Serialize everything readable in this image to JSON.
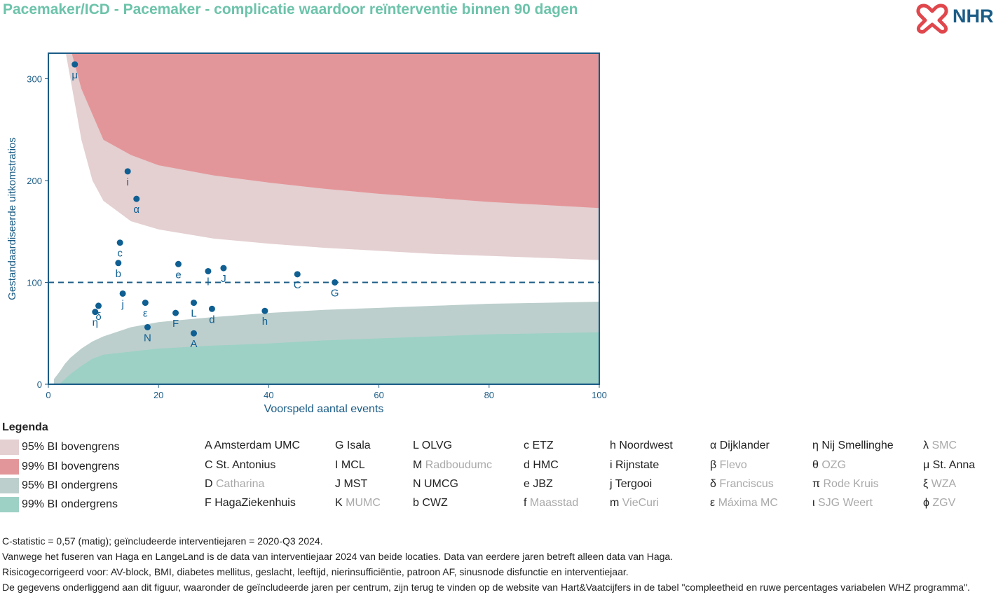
{
  "title": "Pacemaker/ICD - Pacemaker - complicatie waardoor reïnterventie binnen 90 dagen",
  "logo": {
    "text": "NHR",
    "icon": "nhr-heart-logo-icon"
  },
  "colors": {
    "title": "#6cc3aa",
    "upper95": "#e4cfd1",
    "upper99": "#e39699",
    "lower95": "#bccfcd",
    "lower99": "#9dd1c5",
    "axis": "#1b5c86",
    "point": "#0f5f92"
  },
  "chart_data": {
    "type": "scatter",
    "xlabel": "Voorspeld aantal events",
    "ylabel": "Gestandaardiseerde uitkomstratios",
    "xlim": [
      0,
      100
    ],
    "ylim": [
      0,
      325
    ],
    "xticks": [
      0,
      20,
      40,
      60,
      80,
      100
    ],
    "yticks": [
      0,
      100,
      200,
      300
    ],
    "reference_line": 100,
    "points": [
      {
        "label": "μ",
        "x": 4.8,
        "y": 314
      },
      {
        "label": "i",
        "x": 14.4,
        "y": 209
      },
      {
        "label": "α",
        "x": 16.0,
        "y": 182
      },
      {
        "label": "c",
        "x": 13.0,
        "y": 139
      },
      {
        "label": "b",
        "x": 12.7,
        "y": 119
      },
      {
        "label": "e",
        "x": 23.6,
        "y": 118
      },
      {
        "label": "l",
        "x": 29.0,
        "y": 111
      },
      {
        "label": "J",
        "x": 31.8,
        "y": 114
      },
      {
        "label": "C",
        "x": 45.2,
        "y": 108
      },
      {
        "label": "G",
        "x": 52.0,
        "y": 100
      },
      {
        "label": "j",
        "x": 13.5,
        "y": 89
      },
      {
        "label": "ε",
        "x": 17.6,
        "y": 80
      },
      {
        "label": "δ",
        "x": 9.1,
        "y": 77
      },
      {
        "label": "η",
        "x": 8.5,
        "y": 71
      },
      {
        "label": "F",
        "x": 23.1,
        "y": 70
      },
      {
        "label": "L",
        "x": 26.4,
        "y": 80
      },
      {
        "label": "d",
        "x": 29.7,
        "y": 74
      },
      {
        "label": "h",
        "x": 39.3,
        "y": 72
      },
      {
        "label": "N",
        "x": 18.0,
        "y": 56
      },
      {
        "label": "A",
        "x": 26.4,
        "y": 50
      }
    ],
    "bands": {
      "x": [
        1,
        2,
        3,
        4,
        6,
        8,
        10,
        15,
        20,
        30,
        40,
        50,
        60,
        70,
        80,
        90,
        100
      ],
      "upper99": [
        330,
        330,
        330,
        330,
        290,
        265,
        240,
        225,
        215,
        205,
        198,
        192,
        187,
        183,
        179,
        176,
        173
      ],
      "upper95": [
        330,
        330,
        330,
        300,
        240,
        200,
        180,
        160,
        152,
        143,
        138,
        134,
        131,
        128,
        126,
        124,
        122
      ],
      "lower95": [
        5,
        12,
        20,
        26,
        35,
        42,
        47,
        56,
        61,
        66,
        70,
        73,
        75,
        77,
        79,
        80,
        81
      ],
      "lower99": [
        0,
        0,
        5,
        10,
        18,
        25,
        29,
        32,
        35,
        38,
        40,
        43,
        45,
        47,
        49,
        50,
        51
      ]
    }
  },
  "legend": {
    "title": "Legenda",
    "bands": [
      {
        "label": "95% BI bovengrens",
        "color": "#e4cfd1"
      },
      {
        "label": "99% BI bovengrens",
        "color": "#e39699"
      },
      {
        "label": "95% BI ondergrens",
        "color": "#bccfcd"
      },
      {
        "label": "99% BI ondergrens",
        "color": "#9dd1c5"
      }
    ],
    "columns": [
      [
        {
          "code": "A",
          "name": "Amsterdam UMC",
          "muted": false
        },
        {
          "code": "C",
          "name": "St. Antonius",
          "muted": false
        },
        {
          "code": "D",
          "name": "Catharina",
          "muted": true
        },
        {
          "code": "F",
          "name": "HagaZiekenhuis",
          "muted": false
        }
      ],
      [
        {
          "code": "G",
          "name": "Isala",
          "muted": false
        },
        {
          "code": "I",
          "name": "MCL",
          "muted": false
        },
        {
          "code": "J",
          "name": "MST",
          "muted": false
        },
        {
          "code": "K",
          "name": "MUMC",
          "muted": true
        }
      ],
      [
        {
          "code": "L",
          "name": "OLVG",
          "muted": false
        },
        {
          "code": "M",
          "name": "Radboudumc",
          "muted": true
        },
        {
          "code": "N",
          "name": "UMCG",
          "muted": false
        },
        {
          "code": "b",
          "name": "CWZ",
          "muted": false
        }
      ],
      [
        {
          "code": "c",
          "name": "ETZ",
          "muted": false
        },
        {
          "code": "d",
          "name": "HMC",
          "muted": false
        },
        {
          "code": "e",
          "name": "JBZ",
          "muted": false
        },
        {
          "code": "f",
          "name": "Maasstad",
          "muted": true
        }
      ],
      [
        {
          "code": "h",
          "name": "Noordwest",
          "muted": false
        },
        {
          "code": "i",
          "name": "Rijnstate",
          "muted": false
        },
        {
          "code": "j",
          "name": "Tergooi",
          "muted": false
        },
        {
          "code": "m",
          "name": "VieCuri",
          "muted": true
        }
      ],
      [
        {
          "code": "α",
          "name": "Dijklander",
          "muted": false
        },
        {
          "code": "β",
          "name": "Flevo",
          "muted": true
        },
        {
          "code": "δ",
          "name": "Franciscus",
          "muted": true
        },
        {
          "code": "ε",
          "name": "Máxima MC",
          "muted": true
        }
      ],
      [
        {
          "code": "η",
          "name": "Nij Smellinghe",
          "muted": false
        },
        {
          "code": "θ",
          "name": "OZG",
          "muted": true
        },
        {
          "code": "π",
          "name": "Rode Kruis",
          "muted": true
        },
        {
          "code": "ι",
          "name": "SJG Weert",
          "muted": true
        }
      ],
      [
        {
          "code": "λ",
          "name": "SMC",
          "muted": true
        },
        {
          "code": "μ",
          "name": "St. Anna",
          "muted": false
        },
        {
          "code": "ξ",
          "name": "WZA",
          "muted": true
        },
        {
          "code": "ϕ",
          "name": "ZGV",
          "muted": true
        }
      ]
    ]
  },
  "footnotes": [
    "C-statistic =  0,57 (matig); geïncludeerde interventiejaren = 2020-Q3 2024.",
    "Vanwege het fuseren van Haga en LangeLand is de data van interventiejaar 2024 van beide locaties. Data van eerdere jaren betreft alleen data van Haga.",
    "Risicogecorrigeerd voor: AV-block, BMI, diabetes mellitus, geslacht, leeftijd, nierinsufficiëntie, patroon AF, sinusnode disfunctie en interventiejaar.",
    "De gegevens onderliggend aan dit figuur, waaronder de geïncludeerde jaren per centrum, zijn terug te vinden op de website van Hart&Vaatcijfers in de tabel \"compleetheid en ruwe percentages variabelen WHZ programma\"."
  ]
}
